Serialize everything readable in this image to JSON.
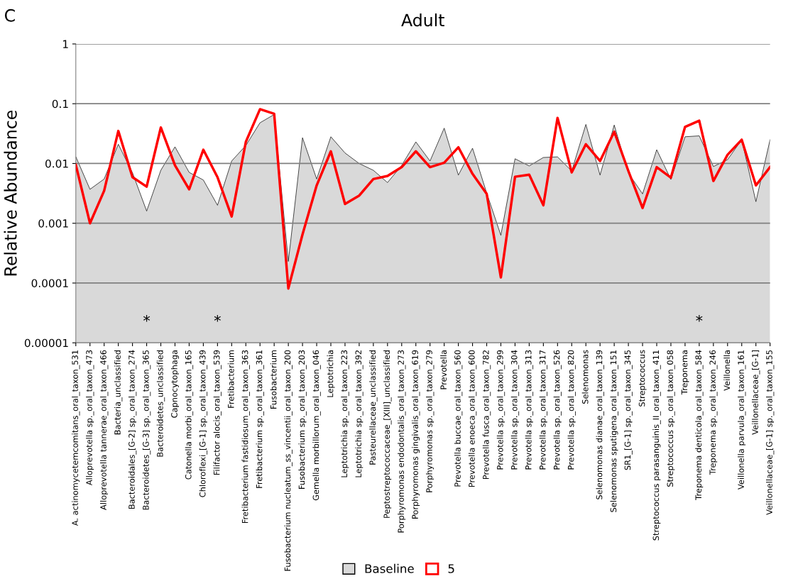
{
  "chart_data": {
    "type": "area",
    "title": "Adult",
    "ylabel": "Relative Abundance",
    "categories": [
      "A. actinomycetemcomitans_oral_taxon_531",
      "Alloprevotella sp._oral_taxon_473",
      "Alloprevotella tannerae_oral_taxon_466",
      "Bacteria_unclassified",
      "Bacteroidales_[G-2] sp._oral_taxon_274",
      "Bacteroidetes_[G-3] sp._oral_taxon_365",
      "Bacteroidetes_unclassified",
      "Capnocytophaga",
      "Catonella morbi_oral_taxon_165",
      "Chloroflexi_[G-1] sp._oral_taxon_439",
      "Filifactor alocis_oral_taxon_539",
      "Fretibacterium",
      "Fretibacterium fastidiosum_oral_taxon_363",
      "Fretibacterium sp._oral_taxon_361",
      "Fusobacterium",
      "Fusobacterium nucleatum_ss_vincentii_oral_taxon_200",
      "Fusobacterium sp._oral_taxon_203",
      "Gemella morbillorum_oral_taxon_046",
      "Leptotrichia",
      "Leptotrichia sp._oral_taxon_223",
      "Leptotrichia sp._oral_taxon_392",
      "Pasteurellaceae_unclassified",
      "Peptostreptococcaceae_[XIII]_unclassified",
      "Porphyromonas endodontalis_oral_taxon_273",
      "Porphyromonas gingivalis_oral_taxon_619",
      "Porphyromonas sp._oral_taxon_279",
      "Prevotella",
      "Prevotella buccae_oral_taxon_560",
      "Prevotella enoeca_oral_taxon_600",
      "Prevotella fusca_oral_taxon_782",
      "Prevotella sp._oral_taxon_299",
      "Prevotella sp._oral_taxon_304",
      "Prevotella sp._oral_taxon_313",
      "Prevotella sp._oral_taxon_317",
      "Prevotella sp._oral_taxon_526",
      "Prevotella sp._oral_taxon_820",
      "Selenomonas",
      "Selenomonas dianae_oral_taxon_139",
      "Selenomonas sputigena_oral_taxon_151",
      "SR1_[G-1] sp._oral_taxon_345",
      "Streptococcus",
      "Streptococcus parasanguinis_II_oral_taxon_411",
      "Streptococcus sp._oral_taxon_058",
      "Treponema",
      "Treponema denticola_oral_taxon_584",
      "Treponema sp._oral_taxon_246",
      "Veillonella",
      "Veillonella parvula_oral_taxon_161",
      "Veillonellaceae_[G-1]",
      "Veillonellaceae_[G-1] sp._oral_taxon_155"
    ],
    "series": [
      {
        "name": "Baseline",
        "color": "#d9d9d9",
        "values": [
          0.013,
          0.0037,
          0.0055,
          0.021,
          0.007,
          0.0016,
          0.0077,
          0.019,
          0.0071,
          0.0053,
          0.002,
          0.011,
          0.02,
          0.048,
          0.066,
          0.00023,
          0.027,
          0.0055,
          0.028,
          0.015,
          0.01,
          0.0077,
          0.0048,
          0.0093,
          0.023,
          0.011,
          0.039,
          0.0064,
          0.018,
          0.0032,
          0.00063,
          0.012,
          0.0091,
          0.0126,
          0.0129,
          0.0075,
          0.045,
          0.0064,
          0.044,
          0.0069,
          0.0031,
          0.017,
          0.0054,
          0.028,
          0.029,
          0.0089,
          0.0116,
          0.025,
          0.0023,
          0.025
        ]
      },
      {
        "name": "5",
        "type": "line",
        "color": "#ff0000",
        "values": [
          0.0095,
          0.001,
          0.0035,
          0.035,
          0.0059,
          0.0041,
          0.04,
          0.0093,
          0.0037,
          0.017,
          0.0059,
          0.0013,
          0.023,
          0.081,
          0.068,
          8.1e-05,
          0.00065,
          0.0043,
          0.016,
          0.0021,
          0.0029,
          0.0055,
          0.0062,
          0.0087,
          0.016,
          0.0087,
          0.0103,
          0.0187,
          0.0067,
          0.0031,
          0.000124,
          0.006,
          0.0065,
          0.002,
          0.058,
          0.0071,
          0.021,
          0.011,
          0.034,
          0.0075,
          0.0018,
          0.0087,
          0.0058,
          0.041,
          0.052,
          0.0051,
          0.014,
          0.025,
          0.0043,
          0.0087
        ]
      }
    ],
    "log": "y",
    "ylim": [
      1e-05,
      1
    ],
    "yticks": [
      {
        "value": 1e-05,
        "label": "0.00001"
      },
      {
        "value": 0.0001,
        "label": "0.0001"
      },
      {
        "value": 0.001,
        "label": "0.001"
      },
      {
        "value": 0.01,
        "label": "0.01"
      },
      {
        "value": 0.1,
        "label": "0.1"
      },
      1
    ],
    "grid": "y",
    "legend": "bottom",
    "annotations": [
      "C",
      "*",
      "*",
      "*"
    ]
  }
}
